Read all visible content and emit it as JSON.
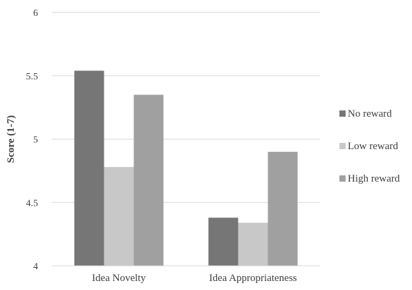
{
  "chart_data": {
    "type": "bar",
    "ylabel": "Score (1-7)",
    "xlabel": "",
    "ylim": [
      4,
      6
    ],
    "yticks": [
      4,
      4.5,
      5,
      5.5,
      6
    ],
    "ytick_labels": [
      "4",
      "4.5",
      "5",
      "5.5",
      "6"
    ],
    "grid": true,
    "legend_position": "right",
    "categories": [
      "Idea Novelty",
      "Idea Appropriateness"
    ],
    "series": [
      {
        "name": "No reward",
        "color": "#767676",
        "values": [
          5.54,
          4.38
        ]
      },
      {
        "name": "Low reward",
        "color": "#c8c8c8",
        "values": [
          4.78,
          4.34
        ]
      },
      {
        "name": "High reward",
        "color": "#a0a0a0",
        "values": [
          5.35,
          4.9
        ]
      }
    ]
  }
}
